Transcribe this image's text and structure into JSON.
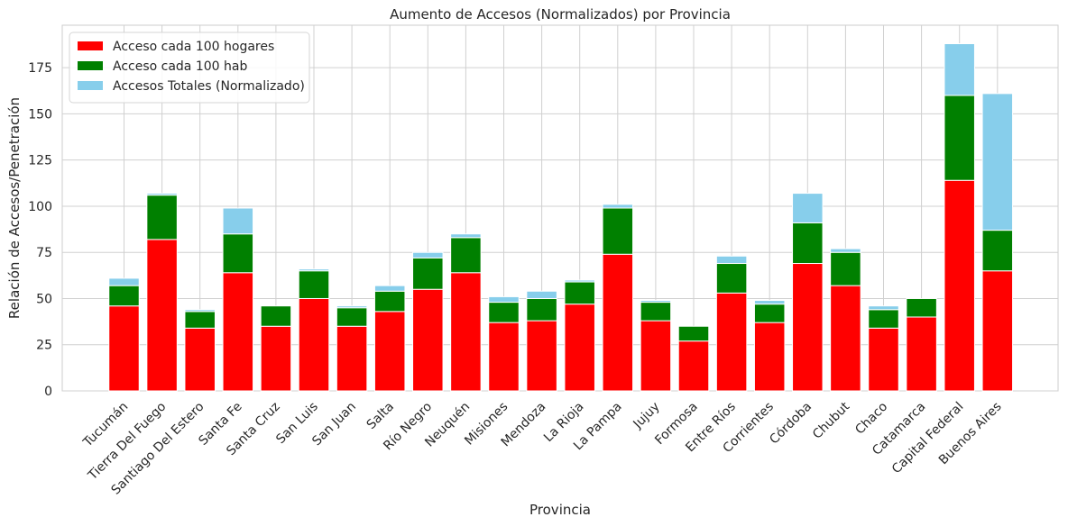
{
  "chart_data": {
    "type": "bar",
    "stacked": true,
    "title": "Aumento de Accesos (Normalizados) por Provincia",
    "xlabel": "Provincia",
    "ylabel": "Relación de Accesos/Penetración",
    "ylim": [
      0,
      198
    ],
    "yticks": [
      0,
      25,
      50,
      75,
      100,
      125,
      150,
      175
    ],
    "grid": true,
    "legend_position": "top-left",
    "categories": [
      "Tucumán",
      "Tierra Del Fuego",
      "Santiago Del Estero",
      "Santa Fe",
      "Santa Cruz",
      "San Luis",
      "San Juan",
      "Salta",
      "Río Negro",
      "Neuquén",
      "Misiones",
      "Mendoza",
      "La Rioja",
      "La Pampa",
      "Jujuy",
      "Formosa",
      "Entre Ríos",
      "Corrientes",
      "Córdoba",
      "Chubut",
      "Chaco",
      "Catamarca",
      "Capital Federal",
      "Buenos Aires"
    ],
    "series": [
      {
        "name": "Acceso cada 100 hogares",
        "color": "#ff0000",
        "values": [
          46,
          82,
          34,
          64,
          35,
          50,
          35,
          43,
          55,
          64,
          37,
          38,
          47,
          74,
          38,
          27,
          53,
          37,
          69,
          57,
          34,
          40,
          114,
          65
        ]
      },
      {
        "name": "Acceso cada 100 hab",
        "color": "#008000",
        "values": [
          11,
          24,
          9,
          21,
          11,
          15,
          10,
          11,
          17,
          19,
          11,
          12,
          12,
          25,
          10,
          8,
          16,
          10,
          22,
          18,
          10,
          10,
          46,
          22
        ]
      },
      {
        "name": "Accesos Totales (Normalizado)",
        "color": "#87ceeb",
        "values": [
          4,
          1,
          1,
          14,
          0,
          1,
          1,
          3,
          3,
          2,
          3,
          4,
          1,
          2,
          1,
          0,
          4,
          2,
          16,
          2,
          2,
          0,
          28,
          74
        ]
      }
    ]
  }
}
